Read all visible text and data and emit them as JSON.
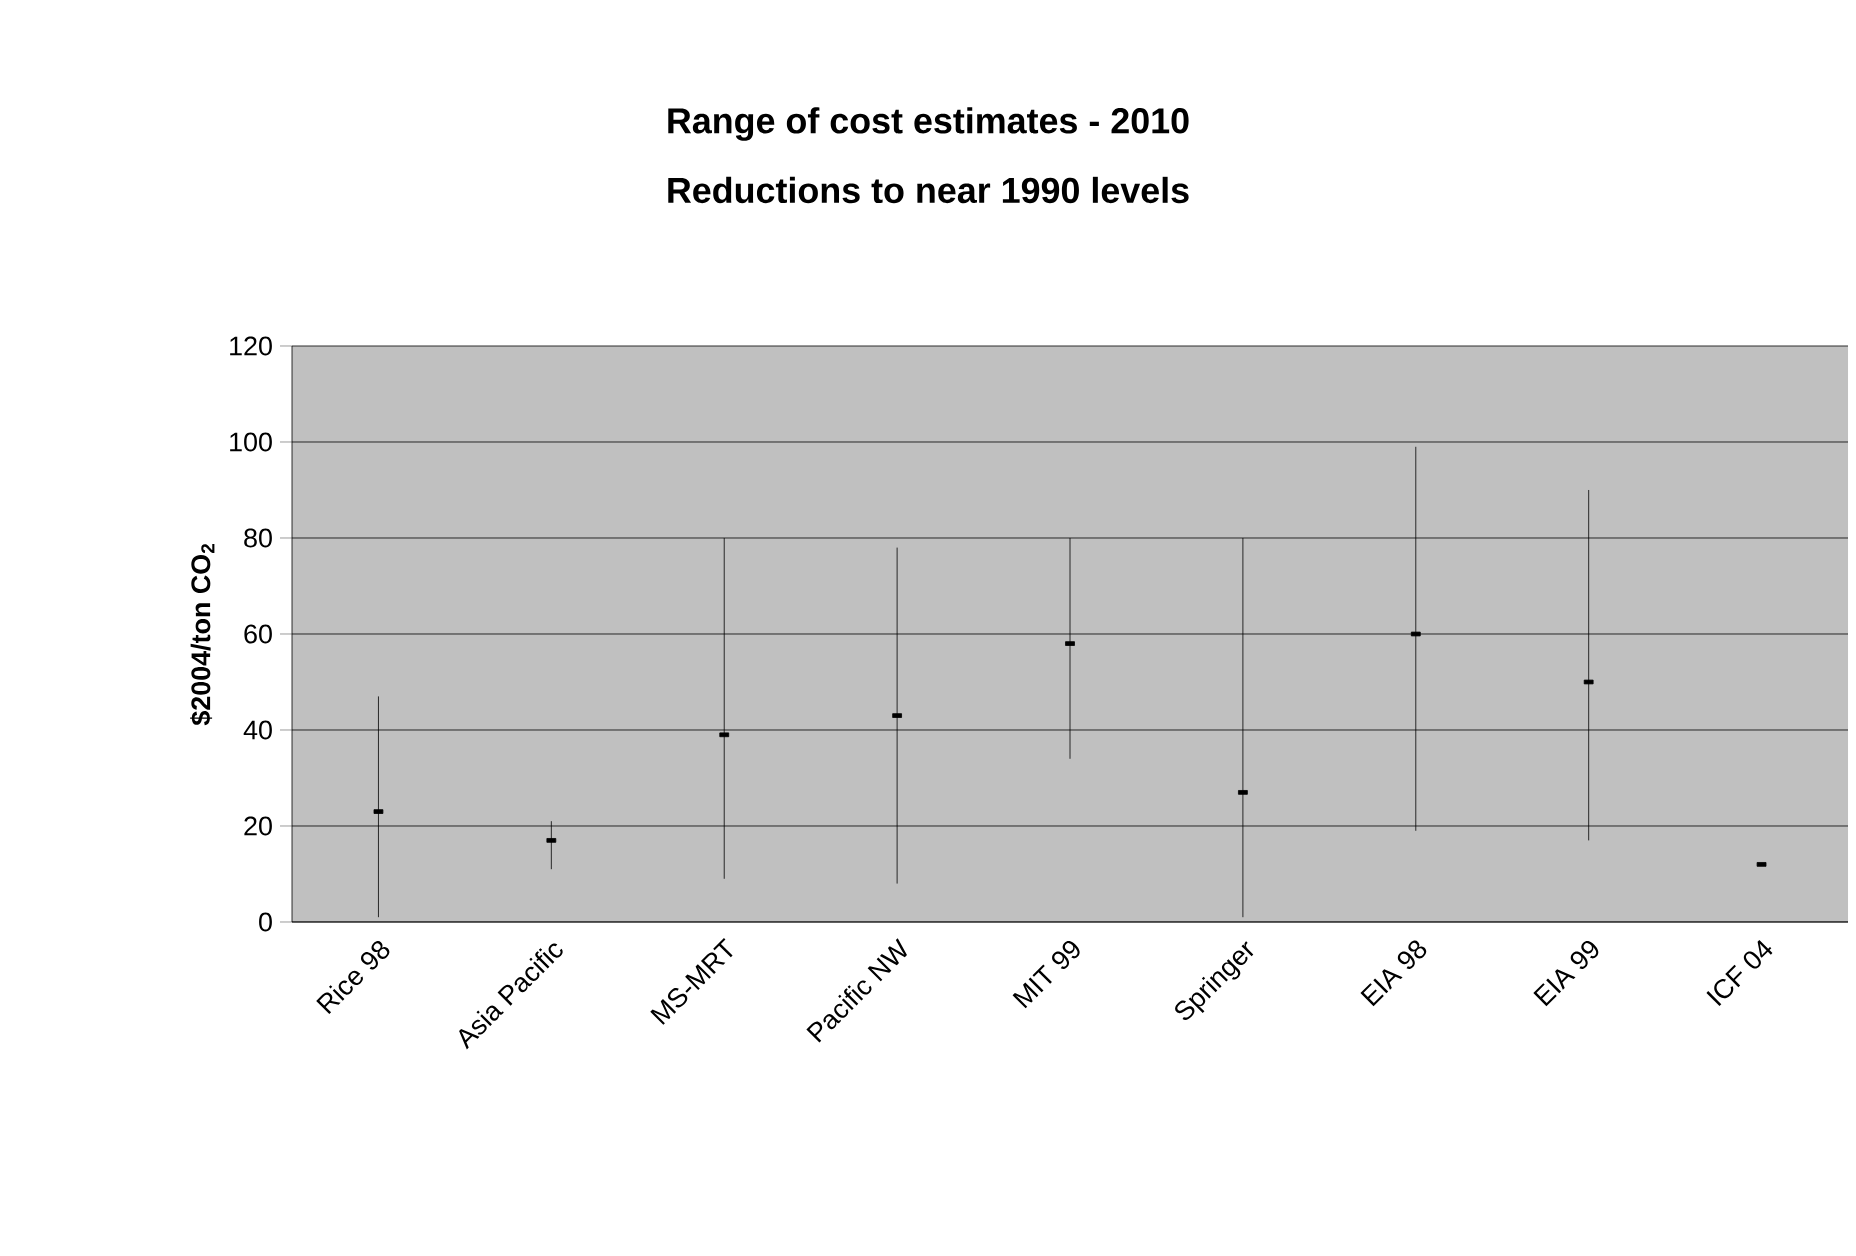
{
  "chart_data": {
    "type": "scatter",
    "title": "Range of cost estimates - 2010",
    "subtitle": "Reductions to near 1990 levels",
    "ylabel": "$2004/ton CO$_{2}$",
    "categories": [
      "Rice 98",
      "Asia Pacific",
      "MS-MRT",
      "Pacific NW",
      "MIT 99",
      "Springer",
      "EIA 98",
      "EIA 99",
      "ICF 04"
    ],
    "values": [
      23,
      17,
      39,
      43,
      58,
      27,
      60,
      50,
      12
    ],
    "errors": [
      [
        1,
        47
      ],
      [
        11,
        21
      ],
      [
        9,
        80
      ],
      [
        8,
        78
      ],
      [
        34,
        80
      ],
      [
        1,
        80
      ],
      [
        19,
        99
      ],
      [
        17,
        90
      ],
      null
    ],
    "color": "#000000",
    "marker": "square",
    "ylim": [
      0,
      120
    ],
    "yticks": [
      0,
      20,
      40,
      60,
      80,
      100,
      120
    ],
    "grid": "y"
  }
}
